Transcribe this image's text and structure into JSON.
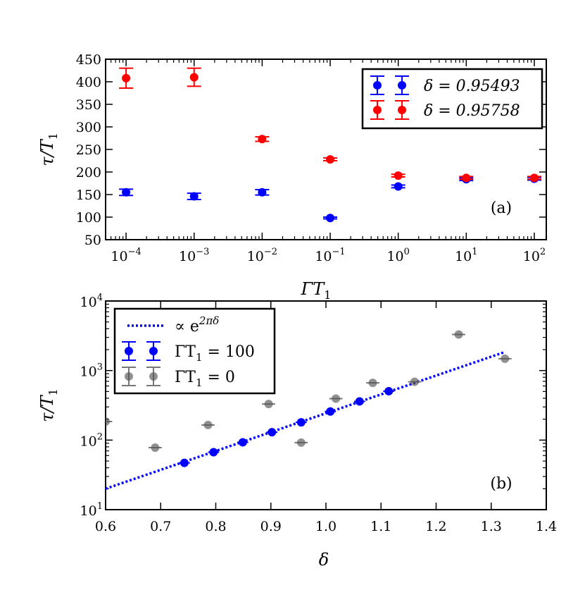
{
  "chart_data": [
    {
      "type": "scatter",
      "panel_label": "(a)",
      "xlabel": "ΓT",
      "xlabel_sub": "1",
      "ylabel": "τ/T",
      "ylabel_sub": "1",
      "xscale": "log",
      "xlim": [
        5e-05,
        150
      ],
      "ylim": [
        50,
        450
      ],
      "xticks": [
        0.0001,
        0.001,
        0.01,
        0.1,
        1,
        10,
        100
      ],
      "xtick_labels": [
        {
          "base": "10",
          "exp": "−4"
        },
        {
          "base": "10",
          "exp": "−3"
        },
        {
          "base": "10",
          "exp": "−2"
        },
        {
          "base": "10",
          "exp": "−1"
        },
        {
          "base": "10",
          "exp": "0"
        },
        {
          "base": "10",
          "exp": "1"
        },
        {
          "base": "10",
          "exp": "2"
        }
      ],
      "yticks": [
        50,
        100,
        150,
        200,
        250,
        300,
        350,
        400,
        450
      ],
      "ytick_labels": [
        "50",
        "100",
        "150",
        "200",
        "250",
        "300",
        "350",
        "400",
        "450"
      ],
      "legend_position": "top-right",
      "series": [
        {
          "name": "δ = 0.95493",
          "color": "#0000ff",
          "x": [
            0.0001,
            0.001,
            0.01,
            0.1,
            1,
            10,
            100
          ],
          "y": [
            155,
            146,
            155,
            98,
            168,
            184,
            185
          ],
          "yerr": [
            7,
            7,
            6,
            2,
            3,
            3,
            3
          ]
        },
        {
          "name": "δ = 0.95758",
          "color": "#ff0000",
          "x": [
            0.0001,
            0.001,
            0.01,
            0.1,
            1,
            10,
            100
          ],
          "y": [
            408,
            410,
            273,
            228,
            192,
            187,
            187
          ],
          "yerr": [
            22,
            20,
            5,
            3,
            3,
            3,
            3
          ]
        }
      ]
    },
    {
      "type": "scatter",
      "panel_label": "(b)",
      "xlabel": "δ",
      "ylabel": "τ/T",
      "ylabel_sub": "1",
      "yscale": "log",
      "xlim": [
        0.6,
        1.4
      ],
      "ylim": [
        10,
        10000
      ],
      "xticks": [
        0.6,
        0.7,
        0.8,
        0.9,
        1.0,
        1.1,
        1.2,
        1.3,
        1.4
      ],
      "xtick_labels": [
        "0.6",
        "0.7",
        "0.8",
        "0.9",
        "1.0",
        "1.1",
        "1.2",
        "1.3",
        "1.4"
      ],
      "yticks": [
        10,
        100,
        1000,
        10000
      ],
      "ytick_labels": [
        {
          "base": "10",
          "exp": "1"
        },
        {
          "base": "10",
          "exp": "2"
        },
        {
          "base": "10",
          "exp": "3"
        },
        {
          "base": "10",
          "exp": "4"
        }
      ],
      "legend_position": "top-left",
      "fit": {
        "name": "∝ e^{2πδ}",
        "label_prefix": "∝ e",
        "label_sup": "2πδ",
        "color": "#0000ff",
        "style": "dotted",
        "x": [
          0.6,
          1.325
        ],
        "y": [
          20,
          1850
        ]
      },
      "series": [
        {
          "name": "ΓT₁ = 100",
          "label_prefix": "ΓT",
          "label_sub": "1",
          "label_suffix": " = 100",
          "color": "#0000ff",
          "x": [
            0.743,
            0.796,
            0.849,
            0.902,
            0.955,
            1.008,
            1.061,
            1.114
          ],
          "y": [
            47,
            67,
            93,
            130,
            180,
            258,
            360,
            505
          ],
          "xerr": [
            0.01,
            0.01,
            0.01,
            0.01,
            0.01,
            0.01,
            0.01,
            0.01
          ]
        },
        {
          "name": "ΓT₁ = 0",
          "label_prefix": "ΓT",
          "label_sub": "1",
          "label_suffix": " = 0",
          "color": "#555555",
          "x": [
            0.6,
            0.69,
            0.786,
            0.896,
            0.955,
            1.018,
            1.085,
            1.161,
            1.241,
            1.325
          ],
          "y": [
            185,
            78,
            165,
            330,
            92,
            395,
            665,
            690,
            3300,
            1480
          ],
          "xerr": [
            0.012,
            0.012,
            0.012,
            0.012,
            0.012,
            0.012,
            0.012,
            0.012,
            0.012,
            0.012
          ]
        }
      ]
    }
  ]
}
